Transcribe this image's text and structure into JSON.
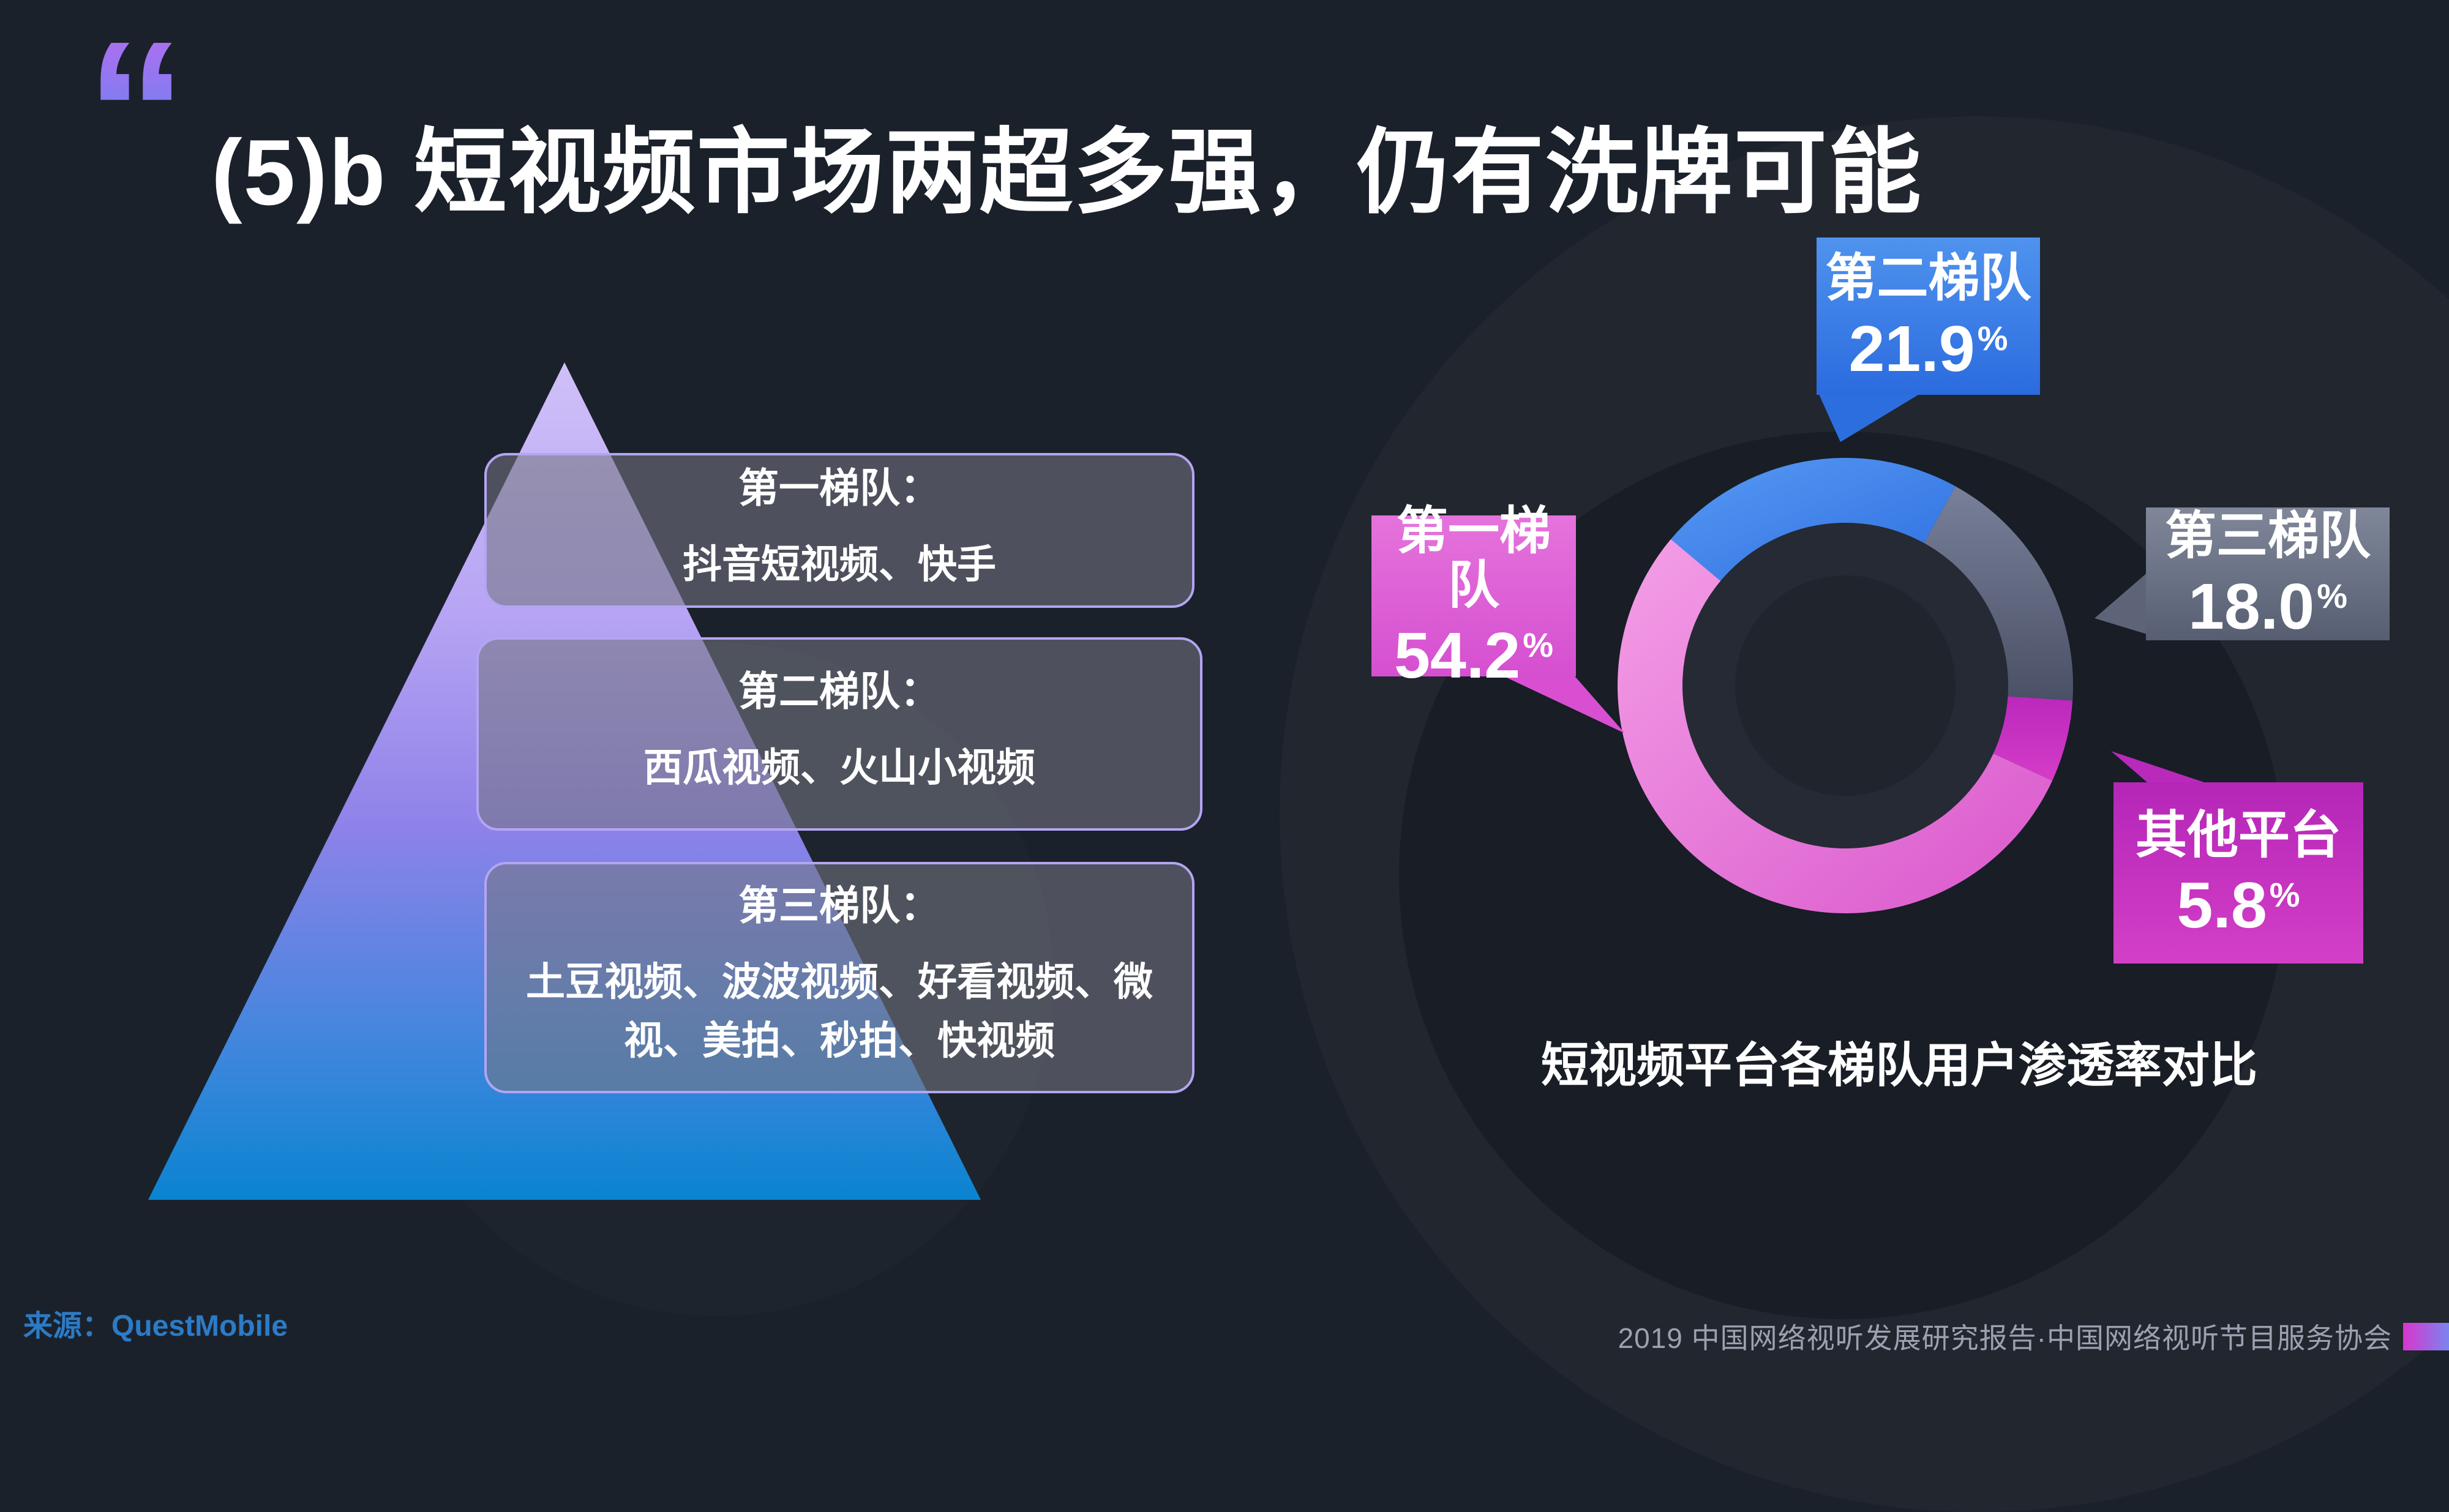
{
  "header": {
    "quote_mark": "“",
    "title": "(5)b 短视频市场两超多强，仍有洗牌可能"
  },
  "pyramid": {
    "tiers": [
      {
        "title": "第一梯队：",
        "platforms": "抖音短视频、快手"
      },
      {
        "title": "第二梯队：",
        "platforms": "西瓜视频、火山小视频"
      },
      {
        "title": "第三梯队：",
        "platforms": "土豆视频、波波视频、好看视频、微视、美拍、秒拍、快视频"
      }
    ]
  },
  "chart_data": {
    "type": "pie",
    "subtype": "donut",
    "title": "短视频平台各梯队用户渗透率对比",
    "unit": "%",
    "start_angle_deg": -50,
    "legend_position": "callouts",
    "grid": false,
    "segments": [
      {
        "label": "第二梯队",
        "value": 21.9,
        "display": "21.9",
        "unit": "%",
        "color_start": "#579af4",
        "color_end": "#2f6fe0"
      },
      {
        "label": "第三梯队",
        "value": 18.0,
        "display": "18.0",
        "unit": "%",
        "color_start": "#78809a",
        "color_end": "#4a5065"
      },
      {
        "label": "其他平台",
        "value": 5.8,
        "display": "5.8",
        "unit": "%",
        "color_start": "#bb28bc",
        "color_end": "#d53cc8"
      },
      {
        "label": "第一梯队",
        "value": 54.2,
        "display": "54.2",
        "unit": "%",
        "color_start": "#f49fe6",
        "color_end": "#d957cc"
      }
    ],
    "hole_colors": {
      "ring": "#252a34",
      "center": "#1f242d"
    }
  },
  "source": {
    "label": "来源：",
    "value": "QuestMobile"
  },
  "footer": {
    "text": "2019 中国网络视听发展研究报告·中国网络视听节目服务协会"
  }
}
